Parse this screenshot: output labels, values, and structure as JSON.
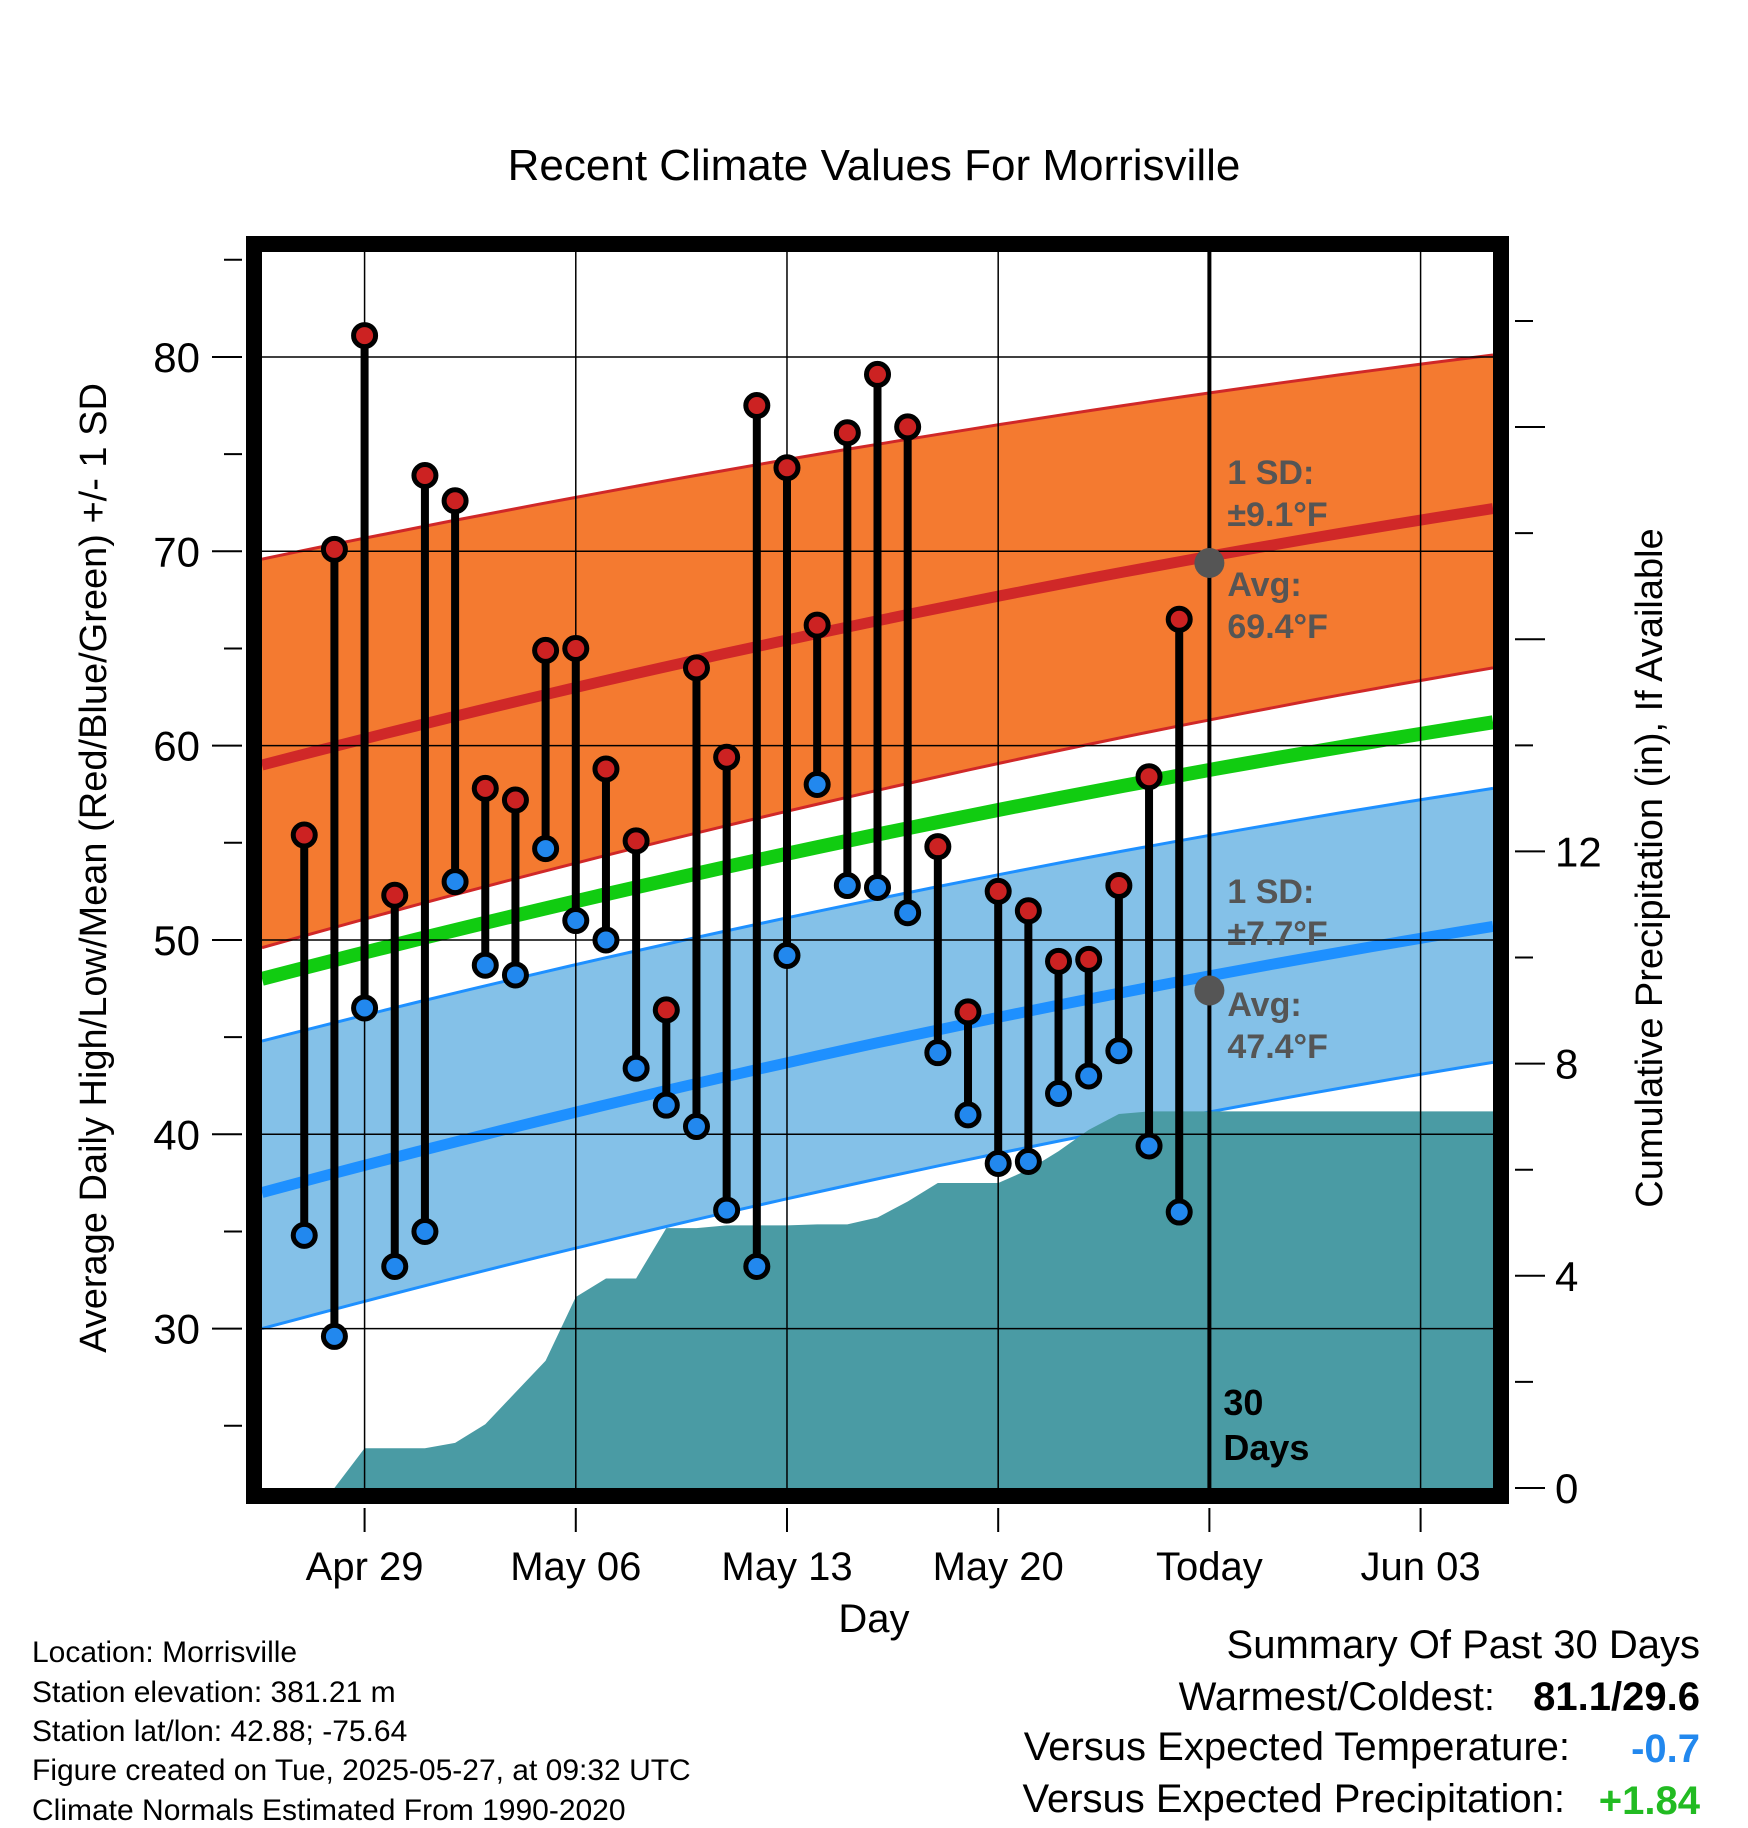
{
  "chart_data": {
    "type": "line",
    "title": "Recent Climate Values For Morrisville",
    "xlabel": "Day",
    "ylabel": "Average Daily High/Low/Mean (Red/Blue/Green) +/- 1 SD",
    "y2label": "Cumulative Precipitation (in), If Available",
    "ylim": [
      21.8,
      85.4
    ],
    "y2lim": [
      0,
      23.3
    ],
    "xlim": [
      -3.4,
      37.4
    ],
    "x_ticks": [
      {
        "day": 0,
        "label": "Apr 29"
      },
      {
        "day": 7,
        "label": "May 06"
      },
      {
        "day": 14,
        "label": "May 13"
      },
      {
        "day": 21,
        "label": "May 20"
      },
      {
        "day": 28,
        "label": "Today"
      },
      {
        "day": 35,
        "label": "Jun 03"
      }
    ],
    "y_ticks": [
      30,
      40,
      50,
      60,
      70,
      80
    ],
    "y2_ticks": [
      0,
      4,
      8,
      12
    ],
    "grid": true,
    "normals": {
      "high_avg": {
        "start": 59.0,
        "end": 72.2
      },
      "high_upper": {
        "start": 69.6,
        "end": 80.1
      },
      "high_lower": {
        "start": 49.6,
        "end": 64.0
      },
      "mean_avg": {
        "start": 48.0,
        "end": 61.2
      },
      "low_avg": {
        "start": 37.0,
        "end": 50.7
      },
      "low_upper": {
        "start": 44.8,
        "end": 57.8
      },
      "low_lower": {
        "start": 30.0,
        "end": 43.7
      }
    },
    "series": [
      {
        "name": "High",
        "color": "#cc2222",
        "points": [
          [
            -2,
            55.4
          ],
          [
            -1,
            70.1
          ],
          [
            0,
            81.1
          ],
          [
            1,
            52.3
          ],
          [
            2,
            73.9
          ],
          [
            3,
            72.6
          ],
          [
            4,
            57.8
          ],
          [
            5,
            57.2
          ],
          [
            6,
            64.9
          ],
          [
            7,
            65.0
          ],
          [
            8,
            58.8
          ],
          [
            9,
            55.1
          ],
          [
            10,
            46.4
          ],
          [
            11,
            64.0
          ],
          [
            12,
            59.4
          ],
          [
            13,
            77.5
          ],
          [
            14,
            74.3
          ],
          [
            15,
            66.2
          ],
          [
            16,
            76.1
          ],
          [
            17,
            79.1
          ],
          [
            18,
            76.4
          ],
          [
            19,
            54.8
          ],
          [
            20,
            46.3
          ],
          [
            21,
            52.5
          ],
          [
            22,
            51.5
          ],
          [
            23,
            48.9
          ],
          [
            24,
            49.0
          ],
          [
            25,
            52.8
          ],
          [
            26,
            58.4
          ],
          [
            27,
            66.5
          ]
        ]
      },
      {
        "name": "Low",
        "color": "#2288ee",
        "points": [
          [
            -2,
            34.8
          ],
          [
            -1,
            29.6
          ],
          [
            0,
            46.5
          ],
          [
            1,
            33.2
          ],
          [
            2,
            35.0
          ],
          [
            3,
            53.0
          ],
          [
            4,
            48.7
          ],
          [
            5,
            48.2
          ],
          [
            6,
            54.7
          ],
          [
            7,
            51.0
          ],
          [
            8,
            50.0
          ],
          [
            9,
            43.4
          ],
          [
            10,
            41.5
          ],
          [
            11,
            40.4
          ],
          [
            12,
            36.1
          ],
          [
            13,
            33.2
          ],
          [
            14,
            49.2
          ],
          [
            15,
            58.0
          ],
          [
            16,
            52.8
          ],
          [
            17,
            52.7
          ],
          [
            18,
            51.4
          ],
          [
            19,
            44.2
          ],
          [
            20,
            41.0
          ],
          [
            21,
            38.5
          ],
          [
            22,
            38.6
          ],
          [
            23,
            42.1
          ],
          [
            24,
            43.0
          ],
          [
            25,
            44.3
          ],
          [
            26,
            39.4
          ],
          [
            27,
            36.0
          ]
        ]
      }
    ],
    "precipitation": {
      "name": "Cumulative Precipitation",
      "points": [
        [
          -1,
          0
        ],
        [
          0,
          0.75
        ],
        [
          1,
          0.75
        ],
        [
          2,
          0.75
        ],
        [
          3,
          0.85
        ],
        [
          4,
          1.2
        ],
        [
          5,
          1.8
        ],
        [
          6,
          2.4
        ],
        [
          7,
          3.6
        ],
        [
          8,
          3.95
        ],
        [
          9,
          3.95
        ],
        [
          10,
          4.9
        ],
        [
          11,
          4.9
        ],
        [
          12,
          4.95
        ],
        [
          13,
          4.95
        ],
        [
          14,
          4.95
        ],
        [
          15,
          4.97
        ],
        [
          16,
          4.97
        ],
        [
          17,
          5.1
        ],
        [
          18,
          5.4
        ],
        [
          19,
          5.75
        ],
        [
          20,
          5.75
        ],
        [
          21,
          5.75
        ],
        [
          22,
          6.0
        ],
        [
          23,
          6.35
        ],
        [
          24,
          6.75
        ],
        [
          25,
          7.05
        ],
        [
          26,
          7.1
        ],
        [
          27,
          7.1
        ],
        [
          28,
          7.1
        ],
        [
          29,
          7.1
        ],
        [
          30,
          7.1
        ],
        [
          31,
          7.1
        ],
        [
          32,
          7.1
        ],
        [
          33,
          7.1
        ],
        [
          34,
          7.1
        ],
        [
          35,
          7.1
        ],
        [
          36,
          7.1
        ],
        [
          37.4,
          7.1
        ]
      ]
    },
    "today_marker": {
      "label_line1": "30",
      "label_line2": "Days"
    },
    "annotations": {
      "high": {
        "sd_label": "1 SD:",
        "sd_value": "±9.1°F",
        "avg_label": "Avg:",
        "avg_value": "69.4°F",
        "avg": 69.4
      },
      "low": {
        "sd_label": "1 SD:",
        "sd_value": "±7.7°F",
        "avg_label": "Avg:",
        "avg_value": "47.4°F",
        "avg": 47.4
      }
    },
    "colors": {
      "high_band": "#f47a30",
      "high_line": "#d02828",
      "low_band": "#84c1e8",
      "low_line": "#1e90ff",
      "mean_line": "#11cc11",
      "precip": "#4a9ba4",
      "annotation": "#555555"
    }
  },
  "footer": {
    "location": "Location: Morrisville",
    "elevation": "Station elevation: 381.21 m",
    "latlon": "Station lat/lon: 42.88; -75.64",
    "created": "Figure created on Tue, 2025-05-27, at 09:32 UTC",
    "normals": "Climate Normals Estimated From 1990-2020"
  },
  "summary": {
    "title": "Summary Of Past 30 Days",
    "warm_cold_label": "Warmest/Coldest:",
    "warm_cold_value": "81.1/29.6",
    "temp_label": "Versus Expected Temperature:",
    "temp_value": "-0.7",
    "temp_color": "#2288ee",
    "precip_label": "Versus Expected Precipitation:",
    "precip_value": "+1.84",
    "precip_color": "#22bb22"
  }
}
